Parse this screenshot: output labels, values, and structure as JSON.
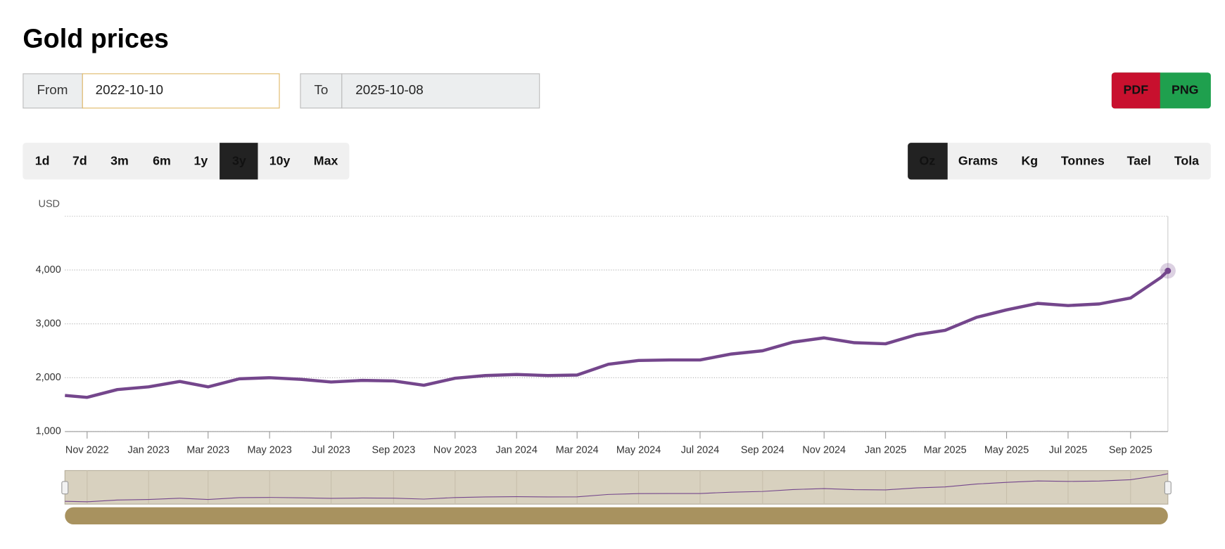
{
  "header": {
    "title": "Gold prices"
  },
  "date_range": {
    "from_label": "From",
    "from": "2022-10-10",
    "to_label": "To",
    "to": "2025-10-08"
  },
  "export_buttons": [
    "PDF",
    "PNG"
  ],
  "range_buttons": [
    "1d",
    "7d",
    "3m",
    "6m",
    "1y",
    "3y",
    "10y",
    "Max"
  ],
  "unit_buttons": [
    "Oz",
    "Grams",
    "Kg",
    "Tonnes",
    "Tael",
    "Tola"
  ],
  "chart_data": {
    "type": "line",
    "y_label": "USD",
    "xlim": [
      "2022-10-10",
      "2025-10-08"
    ],
    "ylim": [
      1000,
      5000
    ],
    "yticks": [
      {
        "value": 1000,
        "label": "1,000"
      },
      {
        "value": 2000,
        "label": "2,000"
      },
      {
        "value": 3000,
        "label": "3,000"
      },
      {
        "value": 4000,
        "label": "4,000"
      }
    ],
    "xticks": [
      {
        "value": "2022-11",
        "label": "Nov 2022"
      },
      {
        "value": "2023-01",
        "label": "Jan 2023"
      },
      {
        "value": "2023-03",
        "label": "Mar 2023"
      },
      {
        "value": "2023-05",
        "label": "May 2023"
      },
      {
        "value": "2023-07",
        "label": "Jul 2023"
      },
      {
        "value": "2023-09",
        "label": "Sep 2023"
      },
      {
        "value": "2023-11",
        "label": "Nov 2023"
      },
      {
        "value": "2024-01",
        "label": "Jan 2024"
      },
      {
        "value": "2024-03",
        "label": "Mar 2024"
      },
      {
        "value": "2024-05",
        "label": "May 2024"
      },
      {
        "value": "2024-07",
        "label": "Jul 2024"
      },
      {
        "value": "2024-09",
        "label": "Sep 2024"
      },
      {
        "value": "2024-11",
        "label": "Nov 2024"
      },
      {
        "value": "2025-01",
        "label": "Jan 2025"
      },
      {
        "value": "2025-03",
        "label": "Mar 2025"
      },
      {
        "value": "2025-05",
        "label": "May 2025"
      },
      {
        "value": "2025-07",
        "label": "Jul 2025"
      },
      {
        "value": "2025-09",
        "label": "Sep 2025"
      }
    ],
    "grid": true,
    "series": [
      {
        "name": "Gold",
        "color": "#74468c",
        "x": [
          "2022-10-10",
          "2022-11",
          "2022-12",
          "2023-01",
          "2023-02",
          "2023-03",
          "2023-04",
          "2023-05",
          "2023-06",
          "2023-07",
          "2023-08",
          "2023-09",
          "2023-10",
          "2023-11",
          "2023-12",
          "2024-01",
          "2024-02",
          "2024-03",
          "2024-04",
          "2024-05",
          "2024-06",
          "2024-07",
          "2024-08",
          "2024-09",
          "2024-10",
          "2024-11",
          "2024-12",
          "2025-01",
          "2025-02",
          "2025-03",
          "2025-04",
          "2025-05",
          "2025-06",
          "2025-07",
          "2025-08",
          "2025-09",
          "2025-10",
          "2025-10-08"
        ],
        "values": [
          1670,
          1635,
          1780,
          1830,
          1930,
          1830,
          1980,
          2000,
          1970,
          1920,
          1950,
          1940,
          1860,
          1990,
          2040,
          2060,
          2040,
          2050,
          2250,
          2320,
          2330,
          2330,
          2440,
          2500,
          2660,
          2740,
          2650,
          2630,
          2800,
          2880,
          3120,
          3260,
          3380,
          3340,
          3370,
          3480,
          3860,
          3985
        ]
      }
    ]
  }
}
